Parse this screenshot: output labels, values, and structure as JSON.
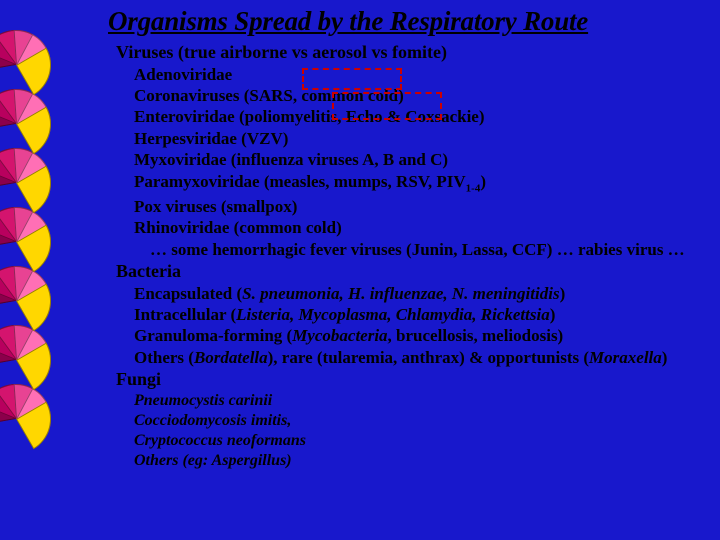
{
  "slide": {
    "title": "Organisms Spread by the Respiratory Route",
    "background_color": "#1818cc",
    "text_color": "#000000",
    "title_fontsize": 27,
    "heading_fontsize": 18,
    "item_fontsize": 17,
    "font_family": "Times New Roman"
  },
  "sections": {
    "viruses": {
      "heading": "Viruses (true airborne vs aerosol vs fomite)",
      "items": {
        "a": "Adenoviridae",
        "b": "Coronaviruses (SARS, common cold)",
        "c": "Enteroviridae (poliomyelitis, Echo & Coxsackie)",
        "d": "Herpesviridae (VZV)",
        "e_pre": "Myxoviridae (influenza viruses A, B and C)",
        "f_pre": "Paramyxoviridae (measles, mumps, RSV, PIV",
        "f_sub": "1-4",
        "f_post": ")",
        "g": "Pox viruses (smallpox)",
        "h": "Rhinoviridae (common cold)"
      },
      "note": "… some hemorrhagic fever viruses (Junin, Lassa, CCF) … rabies virus …"
    },
    "bacteria": {
      "heading": "Bacteria",
      "items": {
        "a_pre": "Encapsulated (",
        "a_ital": "S. pneumonia, H. influenzae, N. meningitidis",
        "a_post": ")",
        "b_pre": "Intracellular  (",
        "b_ital": "Listeria, Mycoplasma, Chlamydia, Rickettsia",
        "b_post": ")",
        "c_pre": "Granuloma-forming (",
        "c_ital": "Mycobacteria",
        "c_post": ", brucellosis, meliodosis)",
        "d_pre": "Others (",
        "d_ital1": "Bordatella",
        "d_mid": "), rare (tularemia, anthrax) & opportunists (",
        "d_ital2": "Moraxella",
        "d_post": ")"
      }
    },
    "fungi": {
      "heading": "Fungi",
      "items": {
        "a": "Pneumocystis carinii",
        "b": "Cocciodomycosis imitis,",
        "c": "Cryptococcus neoformans",
        "d": "Others (eg: Aspergillus)"
      }
    }
  },
  "decor": {
    "fan_count": 7,
    "fan_colors": [
      "#8b004b",
      "#b8005e",
      "#d4146e",
      "#e84393",
      "#ff6fb5",
      "#ffd700"
    ],
    "highlight_border": "#cc0000"
  }
}
